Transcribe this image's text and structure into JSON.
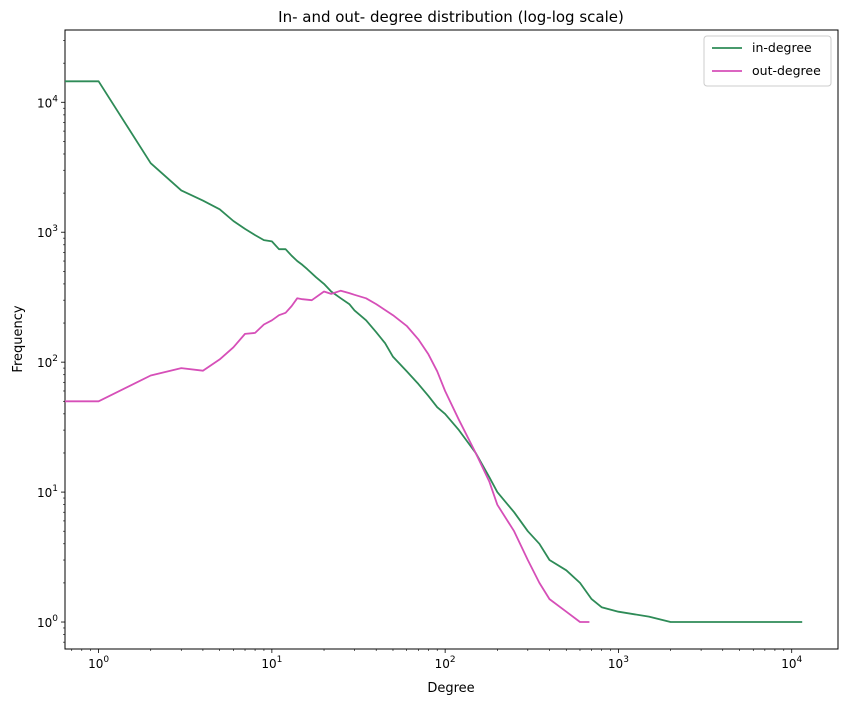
{
  "chart_data": {
    "type": "line",
    "title": "In- and out- degree distribution (log-log scale)",
    "xlabel": "Degree",
    "ylabel": "Frequency",
    "xscale": "log",
    "yscale": "log",
    "xlim": [
      0.64,
      18500
    ],
    "ylim": [
      0.62,
      36000
    ],
    "grid": false,
    "legend_position": "top-right",
    "x_ticks": [
      {
        "exp": 0,
        "base": "10",
        "sup": "0"
      },
      {
        "exp": 1,
        "base": "10",
        "sup": "1"
      },
      {
        "exp": 2,
        "base": "10",
        "sup": "2"
      },
      {
        "exp": 3,
        "base": "10",
        "sup": "3"
      },
      {
        "exp": 4,
        "base": "10",
        "sup": "4"
      }
    ],
    "y_ticks": [
      {
        "exp": 0,
        "base": "10",
        "sup": "0"
      },
      {
        "exp": 1,
        "base": "10",
        "sup": "1"
      },
      {
        "exp": 2,
        "base": "10",
        "sup": "2"
      },
      {
        "exp": 3,
        "base": "10",
        "sup": "3"
      },
      {
        "exp": 4,
        "base": "10",
        "sup": "4"
      }
    ],
    "series": [
      {
        "name": "in-degree",
        "color": "#2e8b57",
        "x": [
          0.64,
          1,
          2,
          3,
          4,
          5,
          6,
          7,
          8,
          9,
          10,
          11,
          12,
          13,
          14,
          15,
          16,
          18,
          20,
          22,
          25,
          28,
          30,
          35,
          40,
          45,
          50,
          60,
          70,
          80,
          90,
          100,
          120,
          150,
          180,
          200,
          250,
          300,
          350,
          400,
          500,
          600,
          700,
          800,
          1000,
          1500,
          2000,
          3000,
          4000,
          5000,
          6000,
          11500
        ],
        "y": [
          14500,
          14500,
          3400,
          2100,
          1750,
          1500,
          1220,
          1060,
          950,
          870,
          850,
          740,
          740,
          660,
          600,
          560,
          520,
          450,
          400,
          350,
          310,
          280,
          250,
          210,
          170,
          140,
          110,
          85,
          68,
          55,
          45,
          40,
          30,
          20,
          13,
          10,
          7,
          5,
          4,
          3,
          2.5,
          2,
          1.5,
          1.3,
          1.2,
          1.1,
          1,
          1,
          1,
          1,
          1,
          1
        ]
      },
      {
        "name": "out-degree",
        "color": "#d64fb8",
        "x": [
          0.64,
          1,
          2,
          3,
          4,
          5,
          6,
          7,
          8,
          9,
          10,
          11,
          12,
          13,
          14,
          15,
          17,
          20,
          22,
          25,
          28,
          30,
          35,
          40,
          50,
          60,
          70,
          80,
          90,
          100,
          120,
          150,
          180,
          200,
          250,
          300,
          350,
          400,
          500,
          600,
          680
        ],
        "y": [
          50,
          50,
          79,
          90,
          86,
          105,
          130,
          165,
          168,
          195,
          210,
          230,
          240,
          270,
          310,
          305,
          300,
          350,
          335,
          355,
          340,
          330,
          310,
          280,
          230,
          190,
          150,
          115,
          85,
          60,
          36,
          20,
          12,
          8,
          5,
          3,
          2,
          1.5,
          1.2,
          1,
          1
        ]
      }
    ]
  }
}
